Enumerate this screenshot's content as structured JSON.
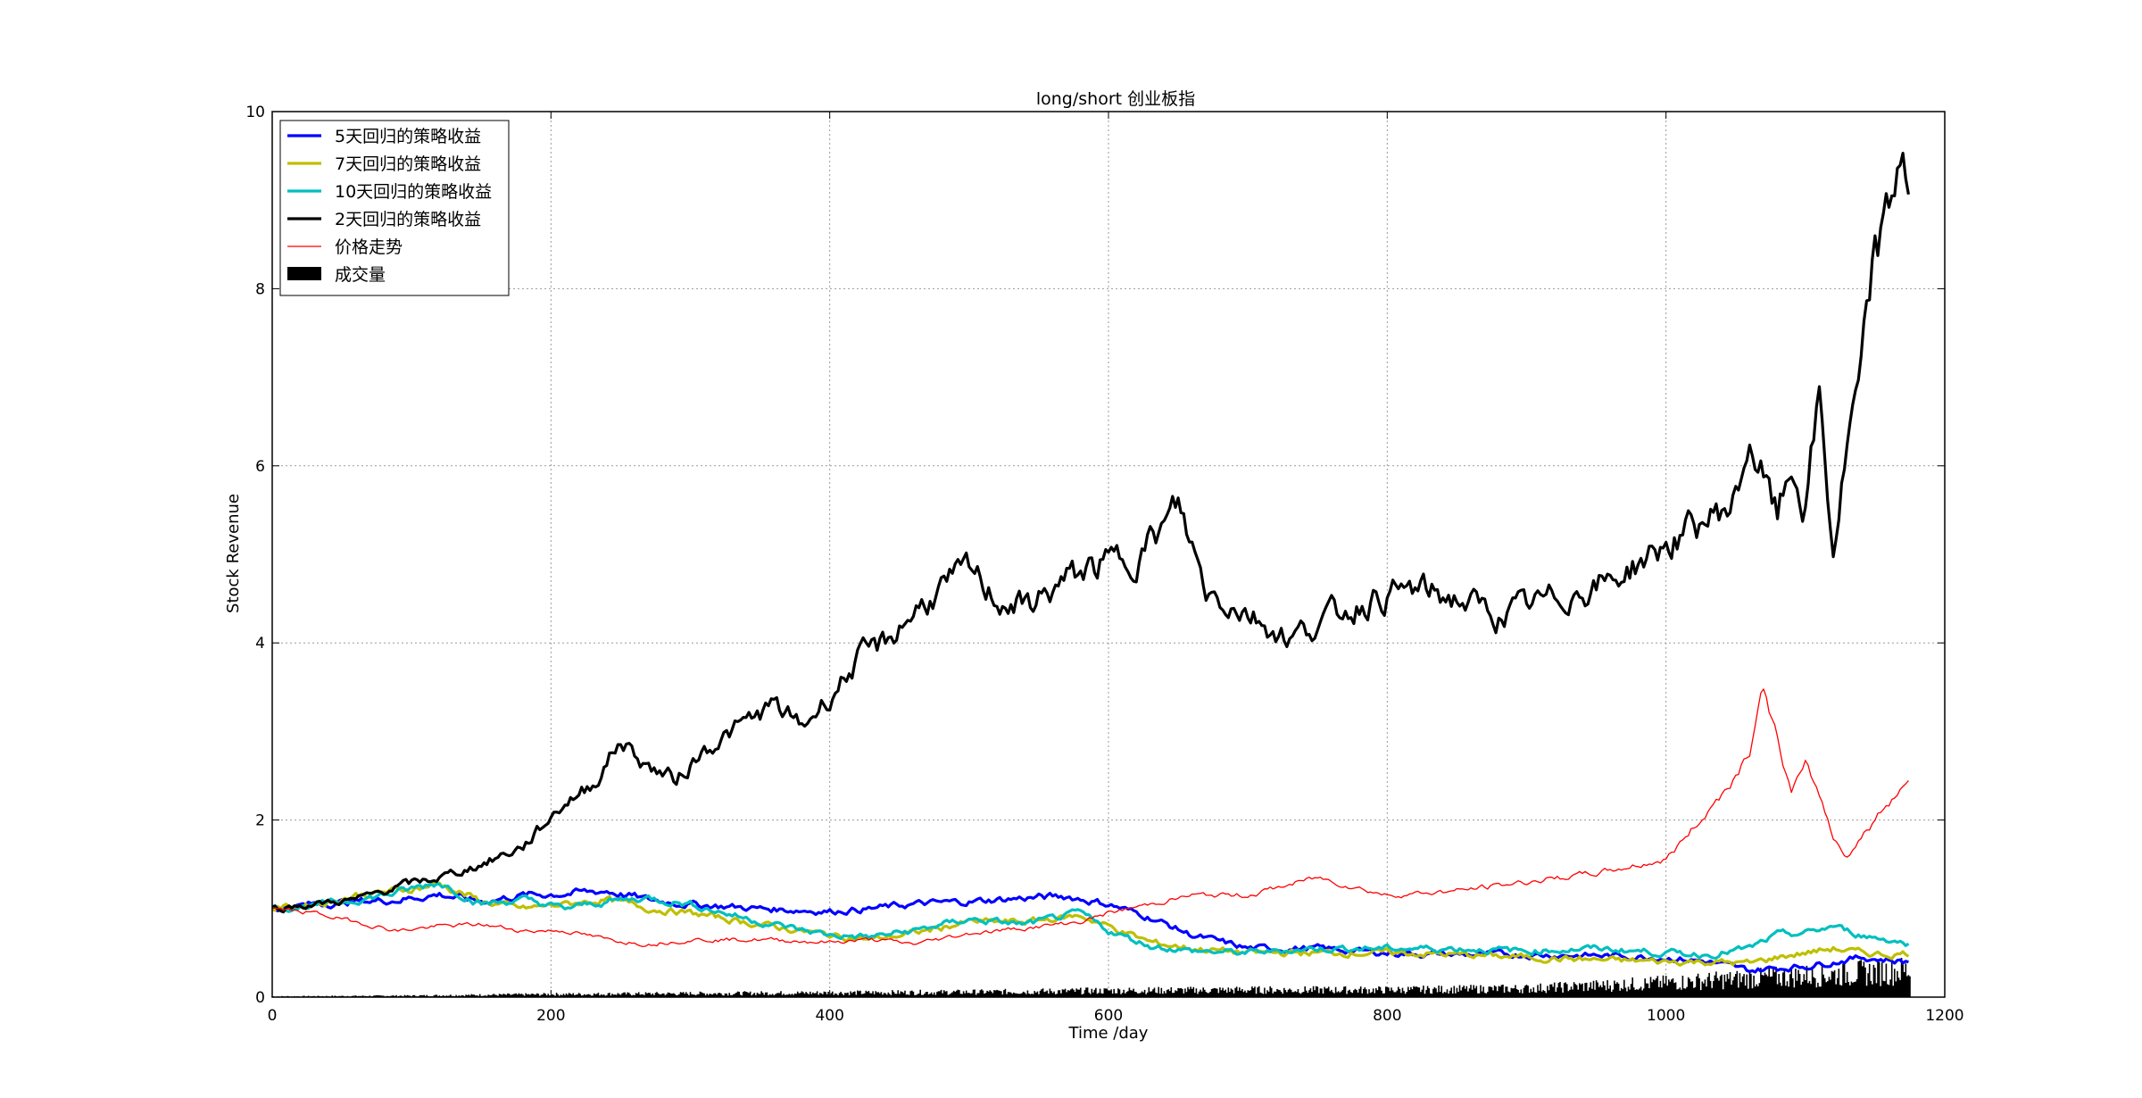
{
  "chart_data": {
    "type": "line",
    "title": "long/short 创业板指",
    "xlabel": "Time /day",
    "ylabel": "Stock Revenue",
    "xlim": [
      0,
      1200
    ],
    "ylim": [
      0,
      10
    ],
    "xticks": [
      0,
      200,
      400,
      600,
      800,
      1000,
      1200
    ],
    "yticks": [
      0,
      2,
      4,
      6,
      8,
      10
    ],
    "grid": true,
    "legend_position": "upper-left",
    "series": [
      {
        "name": "5天回归的策略收益",
        "color": "#0000ff",
        "style": "thick",
        "x": [
          0,
          30,
          60,
          90,
          120,
          150,
          180,
          210,
          240,
          270,
          300,
          350,
          400,
          430,
          460,
          500,
          540,
          570,
          600,
          630,
          660,
          700,
          750,
          800,
          850,
          900,
          950,
          1000,
          1030,
          1060,
          1080,
          1100,
          1120,
          1140,
          1160,
          1175
        ],
        "y": [
          1.0,
          1.05,
          1.08,
          1.1,
          1.16,
          1.08,
          1.15,
          1.17,
          1.2,
          1.1,
          1.05,
          1.0,
          0.97,
          1.0,
          1.05,
          1.08,
          1.12,
          1.14,
          1.05,
          0.9,
          0.7,
          0.55,
          0.55,
          0.5,
          0.48,
          0.48,
          0.47,
          0.45,
          0.4,
          0.3,
          0.33,
          0.35,
          0.4,
          0.45,
          0.42,
          0.4
        ]
      },
      {
        "name": "7天回归的策略收益",
        "color": "#bfbf00",
        "style": "thick",
        "x": [
          0,
          30,
          60,
          90,
          120,
          150,
          180,
          210,
          240,
          270,
          300,
          350,
          400,
          430,
          460,
          500,
          540,
          580,
          600,
          630,
          660,
          700,
          750,
          800,
          850,
          900,
          950,
          1000,
          1030,
          1060,
          1080,
          1100,
          1120,
          1140,
          1160,
          1175
        ],
        "y": [
          1.0,
          1.05,
          1.15,
          1.2,
          1.28,
          1.08,
          1.0,
          1.05,
          1.1,
          1.0,
          0.95,
          0.82,
          0.7,
          0.65,
          0.72,
          0.85,
          0.85,
          0.92,
          0.8,
          0.62,
          0.55,
          0.5,
          0.5,
          0.5,
          0.48,
          0.45,
          0.42,
          0.4,
          0.4,
          0.38,
          0.45,
          0.5,
          0.55,
          0.5,
          0.48,
          0.5
        ]
      },
      {
        "name": "10天回归的策略收益",
        "color": "#00bfbf",
        "style": "thick",
        "x": [
          0,
          30,
          60,
          90,
          120,
          150,
          180,
          210,
          240,
          270,
          300,
          350,
          400,
          430,
          460,
          500,
          540,
          580,
          600,
          630,
          660,
          700,
          750,
          800,
          850,
          900,
          950,
          1000,
          1030,
          1060,
          1080,
          1100,
          1120,
          1140,
          1160,
          1175
        ],
        "y": [
          1.0,
          1.03,
          1.1,
          1.18,
          1.3,
          1.05,
          1.1,
          1.0,
          1.08,
          1.12,
          1.05,
          0.85,
          0.7,
          0.68,
          0.75,
          0.88,
          0.82,
          0.95,
          0.75,
          0.58,
          0.52,
          0.5,
          0.55,
          0.55,
          0.55,
          0.52,
          0.55,
          0.5,
          0.48,
          0.55,
          0.7,
          0.72,
          0.8,
          0.7,
          0.65,
          0.6
        ]
      },
      {
        "name": "2天回归的策略收益",
        "color": "#000000",
        "style": "thick",
        "x": [
          0,
          30,
          60,
          90,
          120,
          150,
          180,
          210,
          230,
          250,
          270,
          290,
          310,
          330,
          360,
          380,
          400,
          420,
          440,
          460,
          480,
          500,
          520,
          540,
          560,
          580,
          600,
          620,
          640,
          650,
          670,
          700,
          730,
          760,
          790,
          820,
          850,
          880,
          900,
          930,
          960,
          990,
          1020,
          1050,
          1060,
          1080,
          1090,
          1100,
          1110,
          1120,
          1130,
          1140,
          1150,
          1160,
          1170,
          1175
        ],
        "y": [
          1.0,
          1.05,
          1.1,
          1.25,
          1.35,
          1.5,
          1.7,
          2.2,
          2.4,
          2.9,
          2.6,
          2.45,
          2.8,
          3.0,
          3.3,
          3.05,
          3.4,
          3.8,
          4.0,
          4.35,
          4.6,
          4.8,
          4.5,
          4.4,
          4.6,
          4.8,
          4.9,
          5.0,
          5.3,
          5.55,
          4.6,
          4.35,
          4.05,
          4.3,
          4.5,
          4.6,
          4.5,
          4.3,
          4.4,
          4.55,
          4.7,
          5.0,
          5.3,
          5.6,
          6.3,
          5.4,
          6.0,
          5.5,
          6.8,
          5.0,
          6.2,
          7.0,
          8.4,
          8.8,
          9.7,
          9.1
        ]
      },
      {
        "name": "价格走势",
        "color": "#ff0000",
        "style": "thin",
        "x": [
          0,
          30,
          60,
          90,
          120,
          150,
          180,
          210,
          240,
          270,
          300,
          350,
          400,
          430,
          460,
          500,
          540,
          580,
          600,
          630,
          660,
          700,
          750,
          800,
          850,
          900,
          950,
          1000,
          1030,
          1050,
          1060,
          1070,
          1080,
          1090,
          1100,
          1110,
          1120,
          1130,
          1140,
          1150,
          1160,
          1170,
          1175
        ],
        "y": [
          1.0,
          0.95,
          0.85,
          0.75,
          0.8,
          0.82,
          0.75,
          0.75,
          0.65,
          0.6,
          0.65,
          0.65,
          0.62,
          0.65,
          0.6,
          0.72,
          0.78,
          0.85,
          0.95,
          1.05,
          1.15,
          1.15,
          1.35,
          1.15,
          1.2,
          1.3,
          1.4,
          1.55,
          2.1,
          2.5,
          2.8,
          3.5,
          2.9,
          2.3,
          2.6,
          2.3,
          1.8,
          1.6,
          1.8,
          2.0,
          2.2,
          2.4,
          2.45
        ]
      }
    ],
    "volume": {
      "name": "成交量",
      "color": "#000000",
      "x": [
        0,
        100,
        200,
        300,
        400,
        500,
        600,
        700,
        800,
        900,
        950,
        1000,
        1050,
        1100,
        1150,
        1175
      ],
      "y": [
        0.01,
        0.02,
        0.04,
        0.05,
        0.06,
        0.07,
        0.09,
        0.1,
        0.1,
        0.12,
        0.16,
        0.2,
        0.25,
        0.3,
        0.35,
        0.38
      ]
    }
  }
}
